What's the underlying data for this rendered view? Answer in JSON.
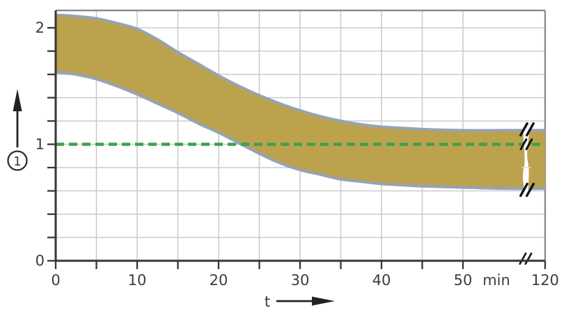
{
  "figure": {
    "background": "#ffffff",
    "axis_color": "#363636",
    "grid_color": "#cbcbcb",
    "frame_color": "#8c8c8c",
    "text_color": "#3c3c3c",
    "break_mark_color": "#141414"
  },
  "chart_data": {
    "type": "area",
    "title": "",
    "xlabel": "t",
    "x_unit": "min",
    "x_minutes": [
      0,
      2.5,
      5,
      7.5,
      10,
      12.5,
      15,
      17.5,
      20,
      22.5,
      25,
      27.5,
      30,
      32.5,
      35,
      37.5,
      40,
      42.5,
      45,
      50,
      55,
      120
    ],
    "series": [
      {
        "name": "upper_limit",
        "values": [
          2.11,
          2.1,
          2.08,
          2.04,
          1.99,
          1.9,
          1.79,
          1.69,
          1.59,
          1.5,
          1.42,
          1.35,
          1.29,
          1.24,
          1.2,
          1.17,
          1.15,
          1.14,
          1.13,
          1.12,
          1.12,
          1.12
        ]
      },
      {
        "name": "lower_limit",
        "values": [
          1.62,
          1.6,
          1.56,
          1.5,
          1.43,
          1.35,
          1.27,
          1.18,
          1.1,
          1.01,
          0.92,
          0.84,
          0.78,
          0.74,
          0.7,
          0.68,
          0.66,
          0.65,
          0.64,
          0.63,
          0.62,
          0.62
        ]
      }
    ],
    "band_fill": "#bda24d",
    "band_stroke": "#95a3b5",
    "reference_line": {
      "y": 1,
      "style": "dashed",
      "color": "#39a24c"
    },
    "x_axis": {
      "labeled_ticks": [
        0,
        10,
        20,
        30,
        40,
        50
      ],
      "minor_tick_step": 5,
      "end_tick": 120,
      "break_between": [
        55,
        120
      ]
    },
    "y_axis": {
      "labeled_ticks": [
        0,
        1,
        2
      ],
      "minor_tick_step": 0.2,
      "range": [
        0,
        2.15
      ],
      "arrow_annotation": "1"
    },
    "grid": true,
    "legend": false
  }
}
